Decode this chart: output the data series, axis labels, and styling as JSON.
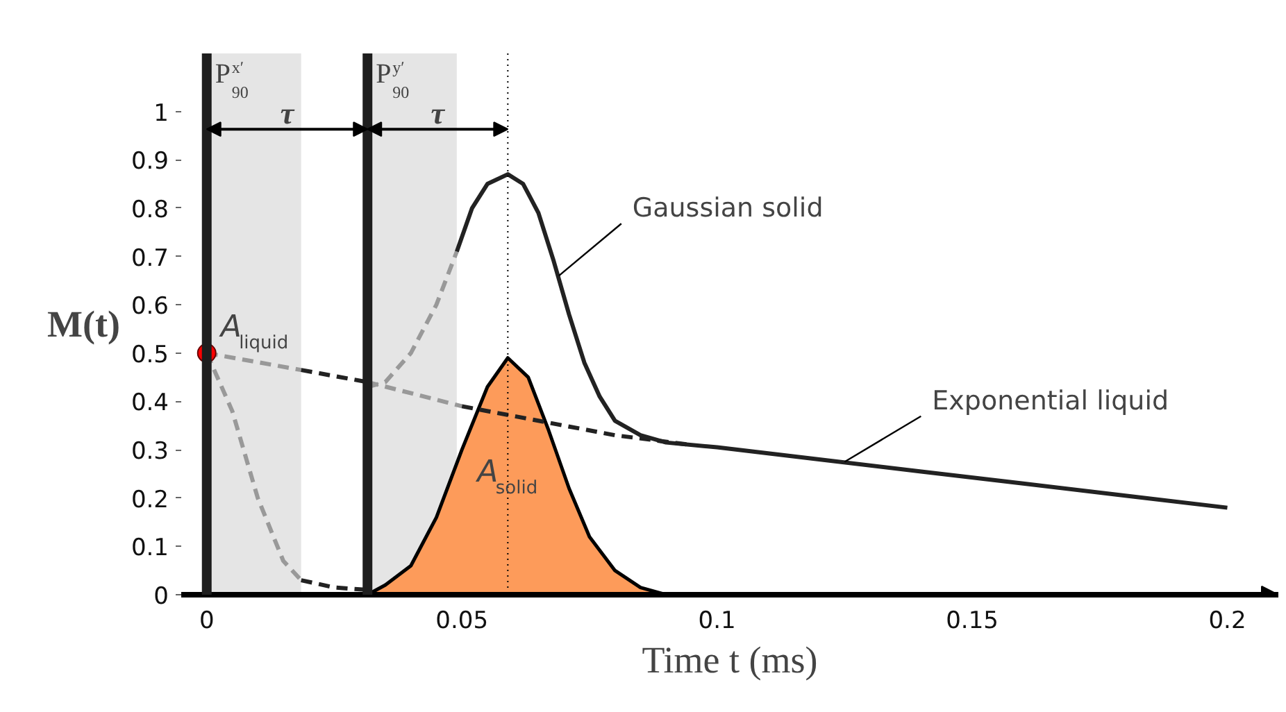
{
  "chart_data": {
    "type": "line",
    "xlabel": "Time t (ms)",
    "ylabel": "M(t)",
    "xlim": [
      -0.005,
      0.21
    ],
    "ylim": [
      0,
      1.12
    ],
    "xticks": [
      0,
      0.05,
      0.1,
      0.15,
      0.2
    ],
    "yticks": [
      0,
      0.1,
      0.2,
      0.3,
      0.4,
      0.5,
      0.6,
      0.7,
      0.8,
      0.9,
      1
    ],
    "grid": false,
    "series": [
      {
        "type": "area",
        "color": "#fd9b5a",
        "x": [
          0.0315,
          0.035,
          0.04,
          0.045,
          0.05,
          0.055,
          0.059,
          0.063,
          0.067,
          0.071,
          0.075,
          0.08,
          0.085,
          0.09
        ],
        "values": [
          0,
          0.02,
          0.06,
          0.16,
          0.3,
          0.43,
          0.49,
          0.45,
          0.34,
          0.22,
          0.12,
          0.05,
          0.015,
          0
        ]
      },
      {
        "color": "#999999",
        "line_style": "dashed",
        "x": [
          0,
          0.005,
          0.01,
          0.015,
          0.0185
        ],
        "values": [
          0.5,
          0.38,
          0.2,
          0.07,
          0.03
        ]
      },
      {
        "color": "#222222",
        "line_style": "dashed",
        "x": [
          0.0185,
          0.025,
          0.0315
        ],
        "values": [
          0.03,
          0.015,
          0.01
        ]
      },
      {
        "color": "#999999",
        "line_style": "dashed",
        "x": [
          0,
          0.0185
        ],
        "values": [
          0.5,
          0.465
        ]
      },
      {
        "color": "#222222",
        "line_style": "dashed",
        "x": [
          0.0185,
          0.0315
        ],
        "values": [
          0.465,
          0.44
        ]
      },
      {
        "color": "#999999",
        "line_style": "dashed",
        "x": [
          0.0315,
          0.05
        ],
        "values": [
          0.44,
          0.39
        ]
      },
      {
        "color": "#222222",
        "line_style": "dashed",
        "x": [
          0.05,
          0.06,
          0.07,
          0.08,
          0.095
        ],
        "values": [
          0.39,
          0.37,
          0.35,
          0.33,
          0.31
        ]
      },
      {
        "color": "#999999",
        "line_style": "dashed",
        "x": [
          0.0315,
          0.035,
          0.04,
          0.045,
          0.049
        ],
        "values": [
          0.43,
          0.44,
          0.5,
          0.6,
          0.71
        ]
      },
      {
        "color": "#222222",
        "line_style": "solid",
        "x": [
          0.049,
          0.052,
          0.055,
          0.059,
          0.062,
          0.065,
          0.068,
          0.071,
          0.074,
          0.077,
          0.08,
          0.085,
          0.09,
          0.1,
          0.12,
          0.14,
          0.16,
          0.18,
          0.2
        ],
        "values": [
          0.71,
          0.8,
          0.85,
          0.87,
          0.85,
          0.79,
          0.69,
          0.58,
          0.48,
          0.41,
          0.36,
          0.33,
          0.315,
          0.305,
          0.28,
          0.255,
          0.23,
          0.205,
          0.18
        ]
      },
      {
        "type": "scatter",
        "color": "#ff0000",
        "marker": "circle",
        "x": [
          0
        ],
        "values": [
          0.5
        ]
      }
    ],
    "bands": [
      {
        "axis": "x",
        "from": 0,
        "to": 0.0185,
        "color": "#e5e5e5"
      },
      {
        "axis": "x",
        "from": 0.0315,
        "to": 0.049,
        "color": "#e5e5e5"
      }
    ],
    "ref_lines": [
      {
        "axis": "x",
        "value": 0,
        "label": "P$_{90}$$^{x′}$",
        "color": "#1e1e1e",
        "line_style": "solid"
      },
      {
        "axis": "x",
        "value": 0.0315,
        "label": "P$_{90}$$^{y′}$",
        "color": "#1e1e1e",
        "line_style": "solid"
      },
      {
        "axis": "x",
        "value": 0.059,
        "color": "#000000",
        "line_style": "dotted"
      }
    ],
    "annotations": [
      "τ",
      "τ",
      {
        "text": "A$_{liquid}$",
        "x": 0,
        "y": 0.5
      },
      {
        "text": "A$_{solid}$",
        "x": 0.059,
        "y": 0.2
      },
      {
        "text": "Gaussian solid",
        "x": 0.069,
        "y": 0.66
      },
      {
        "text": "Exponential liquid",
        "x": 0.125,
        "y": 0.275
      }
    ]
  }
}
